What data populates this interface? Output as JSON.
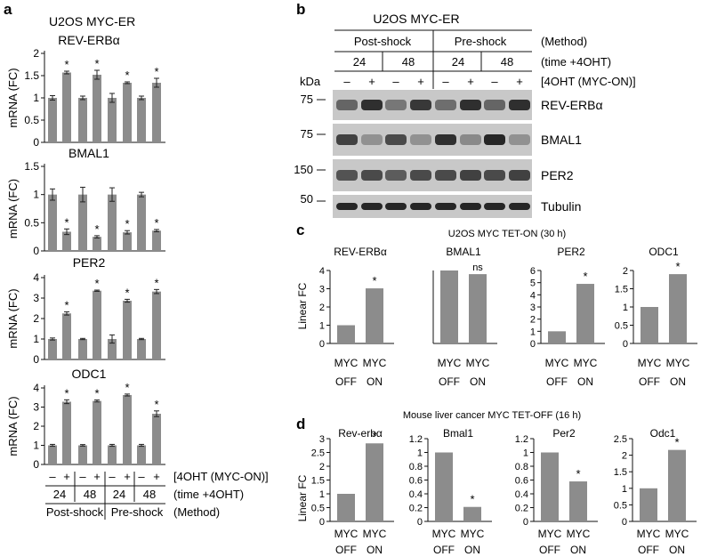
{
  "panel_labels": {
    "a": "a",
    "b": "b",
    "c": "c",
    "d": "d"
  },
  "panel_a": {
    "cell_line": "U2OS MYC-ER",
    "ylabel": "mRNA (FC)",
    "treatment_signs": [
      "–",
      "+",
      "–",
      "+",
      "–",
      "+",
      "–",
      "+"
    ],
    "treatment_label": "[4OHT (MYC-ON)]",
    "times": [
      "24",
      "48",
      "24",
      "48"
    ],
    "time_label": "(time +4OHT)",
    "methods": [
      "Post-shock",
      "Pre-shock"
    ],
    "method_label": "(Method)"
  },
  "panel_b": {
    "cell_line": "U2OS MYC-ER",
    "methods": [
      "Post-shock",
      "Pre-shock"
    ],
    "method_label": "(Method)",
    "times": [
      "24",
      "48",
      "24",
      "48"
    ],
    "time_label": "(time +4OHT)",
    "kda_label": "kDa",
    "treatment_signs": [
      "–",
      "+",
      "–",
      "+",
      "–",
      "+",
      "–",
      "+"
    ],
    "treatment_label": "[4OHT (MYC-ON)]",
    "blots": [
      {
        "name": "REV-ERBα",
        "marker": "75",
        "intensity": [
          0.55,
          0.85,
          0.45,
          0.8,
          0.5,
          0.85,
          0.55,
          0.85
        ]
      },
      {
        "name": "BMAL1",
        "marker": "75",
        "intensity": [
          0.75,
          0.3,
          0.7,
          0.3,
          0.85,
          0.35,
          0.9,
          0.3
        ]
      },
      {
        "name": "PER2",
        "marker": "150",
        "intensity": [
          0.65,
          0.7,
          0.6,
          0.7,
          0.7,
          0.75,
          0.7,
          0.75
        ]
      },
      {
        "name": "Tubulin",
        "marker": "50",
        "intensity": [
          0.9,
          0.9,
          0.9,
          0.9,
          0.9,
          0.9,
          0.9,
          0.9
        ]
      }
    ]
  },
  "panel_c": {
    "title": "U2OS MYC TET-ON (30 h)",
    "ylabel": "Linear FC"
  },
  "panel_d": {
    "title": "Mouse liver cancer MYC TET-OFF (16 h)",
    "ylabel": "Linear FC"
  },
  "colors": {
    "bar": "#8c8c8c",
    "blot_band": "#141414",
    "blot_bg": "#c8c8c8"
  },
  "chart_data": [
    {
      "type": "bar",
      "panel": "a",
      "title": "REV-ERBα",
      "ylabel": "mRNA (FC)",
      "ylim": [
        0,
        2
      ],
      "yticks": [
        0,
        0.5,
        1,
        1.5,
        2
      ],
      "ytick_labels": [
        "0",
        "0.5",
        "1",
        "1.5",
        "2"
      ],
      "values": [
        1.0,
        1.57,
        1.0,
        1.52,
        1.0,
        1.34,
        1.0,
        1.34
      ],
      "errors": [
        0.05,
        0.03,
        0.04,
        0.1,
        0.1,
        0.02,
        0.04,
        0.1
      ],
      "stars": [
        false,
        true,
        false,
        true,
        false,
        true,
        false,
        true
      ]
    },
    {
      "type": "bar",
      "panel": "a",
      "title": "BMAL1",
      "ylabel": "mRNA (FC)",
      "ylim": [
        0,
        1.5
      ],
      "yticks": [
        0,
        0.5,
        1,
        1.5
      ],
      "ytick_labels": [
        "0",
        "0.5",
        "1",
        "1.5"
      ],
      "values": [
        1.0,
        0.34,
        1.0,
        0.25,
        1.0,
        0.33,
        1.0,
        0.36
      ],
      "errors": [
        0.1,
        0.05,
        0.13,
        0.02,
        0.12,
        0.03,
        0.04,
        0.02
      ],
      "stars": [
        false,
        true,
        false,
        true,
        false,
        true,
        false,
        true
      ]
    },
    {
      "type": "bar",
      "panel": "a",
      "title": "PER2",
      "ylabel": "mRNA (FC)",
      "ylim": [
        0,
        4
      ],
      "yticks": [
        0,
        1,
        2,
        3,
        4
      ],
      "ytick_labels": [
        "0",
        "1",
        "2",
        "3",
        "4"
      ],
      "values": [
        1.0,
        2.25,
        1.0,
        3.36,
        1.0,
        2.87,
        1.0,
        3.32
      ],
      "errors": [
        0.05,
        0.08,
        0.03,
        0.03,
        0.2,
        0.07,
        0.03,
        0.1
      ],
      "stars": [
        false,
        true,
        false,
        true,
        false,
        true,
        false,
        true
      ]
    },
    {
      "type": "bar",
      "panel": "a",
      "title": "ODC1",
      "ylabel": "mRNA (FC)",
      "ylim": [
        0,
        4
      ],
      "yticks": [
        0,
        1,
        2,
        3,
        4
      ],
      "ytick_labels": [
        "0",
        "1",
        "2",
        "3",
        "4"
      ],
      "values": [
        1.0,
        3.28,
        1.0,
        3.32,
        1.0,
        3.63,
        1.0,
        2.65
      ],
      "errors": [
        0.05,
        0.1,
        0.04,
        0.05,
        0.05,
        0.05,
        0.05,
        0.15
      ],
      "stars": [
        false,
        true,
        false,
        true,
        false,
        true,
        false,
        true
      ]
    },
    {
      "type": "bar",
      "panel": "c",
      "title": "REV-ERBα",
      "ylabel": "Linear FC",
      "ylim": [
        0,
        4
      ],
      "yticks": [
        0,
        1,
        2,
        3,
        4
      ],
      "ytick_labels": [
        "0",
        "1",
        "2",
        "3",
        "4"
      ],
      "categories": [
        "MYC\nOFF",
        "MYC\nON"
      ],
      "values": [
        1.0,
        3.02
      ],
      "annotations": [
        "",
        "*"
      ]
    },
    {
      "type": "bar",
      "panel": "c",
      "title": "BMAL1",
      "ylim": [
        0,
        1
      ],
      "yticks": [],
      "ytick_labels": [],
      "categories": [
        "MYC\nOFF",
        "MYC\nON"
      ],
      "values": [
        1.0,
        0.95
      ],
      "annotations": [
        "",
        "ns"
      ]
    },
    {
      "type": "bar",
      "panel": "c",
      "title": "PER2",
      "ylim": [
        0,
        6
      ],
      "yticks": [
        0,
        1,
        2,
        3,
        4,
        5,
        6
      ],
      "ytick_labels": [
        "0",
        "1",
        "2",
        "3",
        "4",
        "5",
        "6"
      ],
      "categories": [
        "MYC\nOFF",
        "MYC\nON"
      ],
      "values": [
        1.0,
        4.9
      ],
      "annotations": [
        "",
        "*"
      ]
    },
    {
      "type": "bar",
      "panel": "c",
      "title": "ODC1",
      "ylim": [
        0,
        2
      ],
      "yticks": [
        0,
        0.5,
        1,
        1.5,
        2
      ],
      "ytick_labels": [
        "0",
        "0.5",
        "1",
        "1.5",
        "2"
      ],
      "categories": [
        "MYC\nOFF",
        "MYC\nON"
      ],
      "values": [
        1.0,
        1.9
      ],
      "annotations": [
        "",
        "*"
      ]
    },
    {
      "type": "bar",
      "panel": "d",
      "title": "Rev-erbα",
      "ylabel": "Linear FC",
      "ylim": [
        0,
        3
      ],
      "yticks": [
        0,
        0.5,
        1,
        1.5,
        2,
        2.5,
        3
      ],
      "ytick_labels": [
        "0",
        "0.5",
        "1",
        "1.5",
        "2",
        "2.5",
        "3"
      ],
      "categories": [
        "MYC\nOFF",
        "MYC\nON"
      ],
      "values": [
        1.0,
        2.83
      ],
      "annotations": [
        "",
        "*"
      ]
    },
    {
      "type": "bar",
      "panel": "d",
      "title": "Bmal1",
      "ylim": [
        0,
        1.2
      ],
      "yticks": [
        0,
        0.2,
        0.4,
        0.6,
        0.8,
        1,
        1.2
      ],
      "ytick_labels": [
        "0",
        "0.2",
        "0.4",
        "0.6",
        "0.8",
        "1",
        "1.2"
      ],
      "categories": [
        "MYC\nOFF",
        "MYC\nON"
      ],
      "values": [
        1.0,
        0.21
      ],
      "annotations": [
        "",
        "*"
      ]
    },
    {
      "type": "bar",
      "panel": "d",
      "title": "Per2",
      "ylim": [
        0,
        1.2
      ],
      "yticks": [
        0,
        0.2,
        0.4,
        0.6,
        0.8,
        1,
        1.2
      ],
      "ytick_labels": [
        "0",
        "0.2",
        "0.4",
        "0.6",
        "0.8",
        "1",
        "1.2"
      ],
      "categories": [
        "MYC\nOFF",
        "MYC\nON"
      ],
      "values": [
        1.0,
        0.58
      ],
      "annotations": [
        "",
        "*"
      ]
    },
    {
      "type": "bar",
      "panel": "d",
      "title": "Odc1",
      "ylim": [
        0,
        2.5
      ],
      "yticks": [
        0,
        0.5,
        1,
        1.5,
        2,
        2.5
      ],
      "ytick_labels": [
        "0",
        "0.5",
        "1",
        "1.5",
        "2",
        "2.5"
      ],
      "categories": [
        "MYC\nOFF",
        "MYC\nON"
      ],
      "values": [
        1.0,
        2.16
      ],
      "annotations": [
        "",
        "*"
      ]
    }
  ]
}
